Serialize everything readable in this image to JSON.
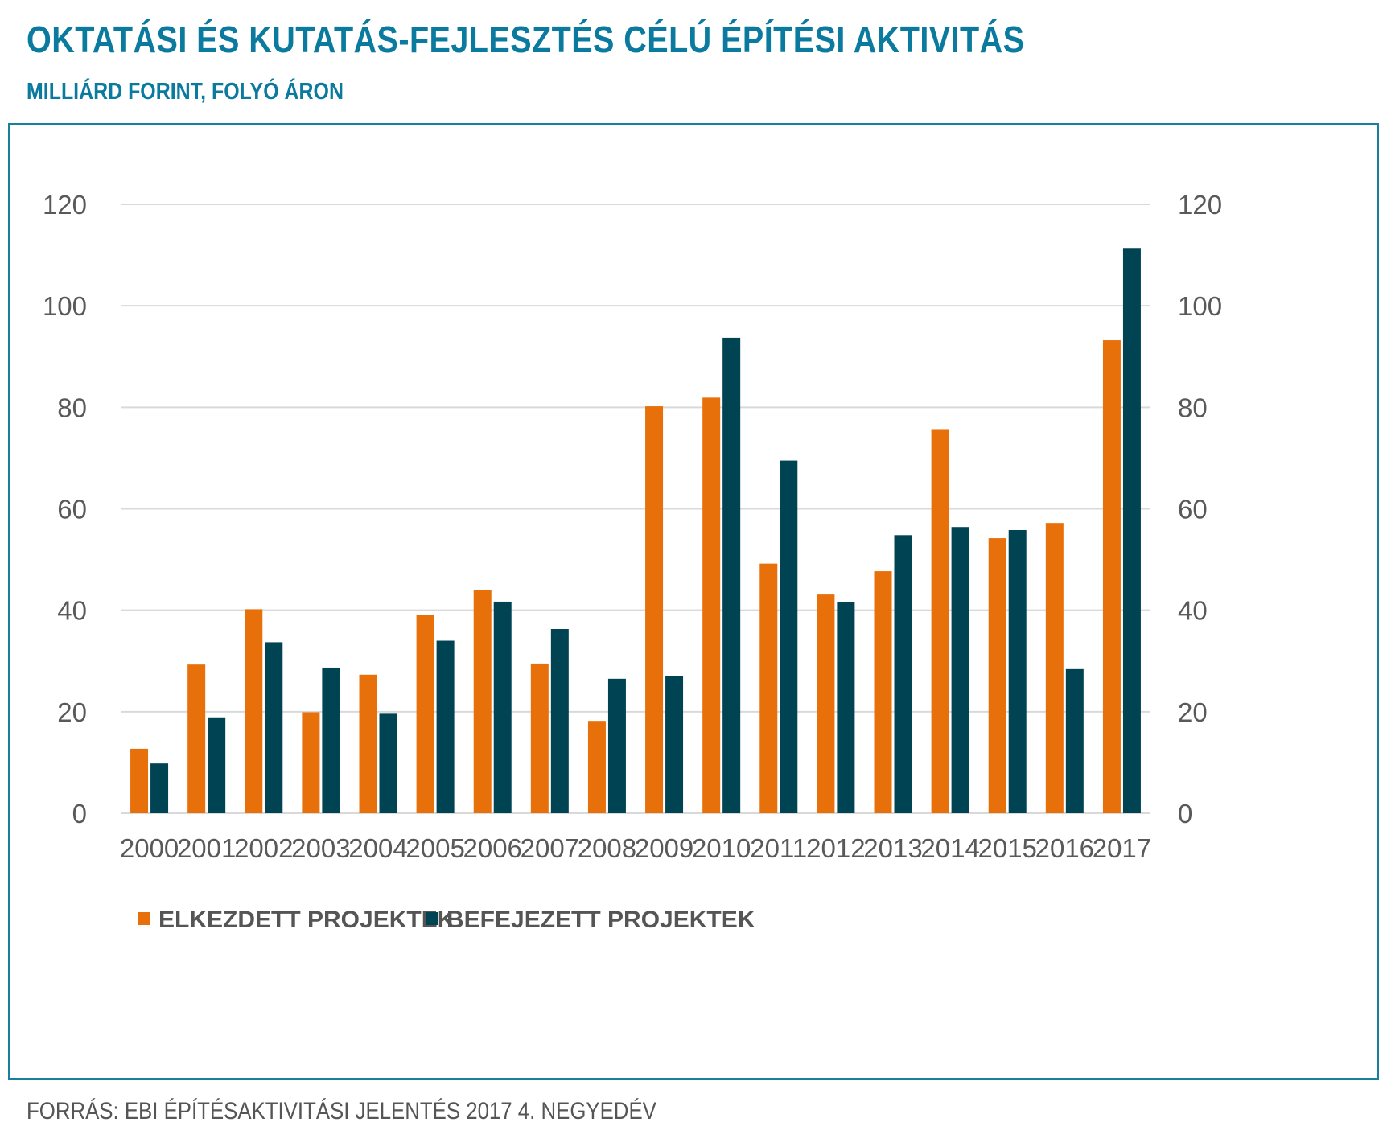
{
  "title": "OKTATÁSI ÉS KUTATÁS-FEJLESZTÉS CÉLÚ ÉPÍTÉSI AKTIVITÁS",
  "subtitle": "MILLIÁRD FORINT, FOLYÓ ÁRON",
  "source": "FORRÁS: EBI ÉPÍTÉSAKTIVITÁSI JELENTÉS 2017 4. NEGYEDÉV",
  "colors": {
    "accent": "#0a7a9e",
    "series1": "#e8700a",
    "series2": "#004454",
    "grid": "#d9d9d9",
    "axis_text": "#595959"
  },
  "chart_data": {
    "type": "bar",
    "title": "OKTATÁSI ÉS KUTATÁS-FEJLESZTÉS CÉLÚ ÉPÍTÉSI AKTIVITÁS",
    "subtitle": "MILLIÁRD FORINT, FOLYÓ ÁRON",
    "xlabel": "",
    "ylabel": "",
    "ylim": [
      0,
      120
    ],
    "yticks": [
      0,
      20,
      40,
      60,
      80,
      100,
      120
    ],
    "y_axis_both_sides": true,
    "grid": true,
    "legend_position": "bottom-left",
    "categories": [
      "2000",
      "2001",
      "2002",
      "2003",
      "2004",
      "2005",
      "2006",
      "2007",
      "2008",
      "2009",
      "2010",
      "2011",
      "2012",
      "2013",
      "2014",
      "2015",
      "2016",
      "2017"
    ],
    "series": [
      {
        "name": "ELKEZDETT PROJEKTEK",
        "color": "#e8700a",
        "values": [
          12.7,
          29.3,
          40.2,
          19.9,
          27.3,
          39.1,
          44.0,
          29.5,
          18.2,
          80.2,
          81.9,
          49.2,
          43.1,
          47.7,
          75.7,
          54.2,
          57.2,
          93.2
        ]
      },
      {
        "name": "BEFEJEZETT PROJEKTEK",
        "color": "#004454",
        "values": [
          9.8,
          18.9,
          33.7,
          28.7,
          19.6,
          34.0,
          41.7,
          36.3,
          26.5,
          27.0,
          93.7,
          69.5,
          41.6,
          54.8,
          56.4,
          55.8,
          28.4,
          111.4
        ]
      }
    ]
  }
}
